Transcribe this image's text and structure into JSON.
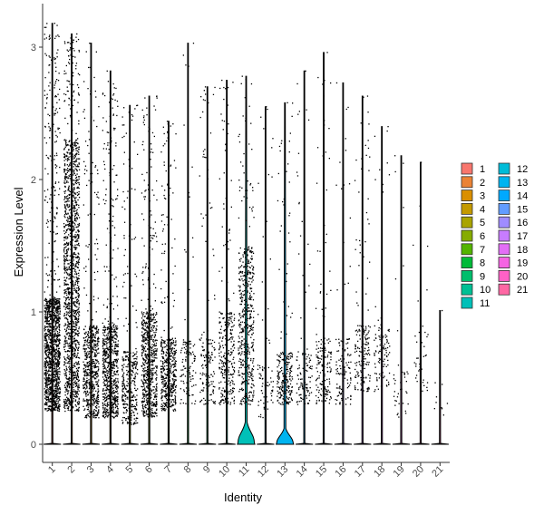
{
  "chart_data": {
    "type": "violin",
    "xlabel": "Identity",
    "ylabel": "Expression Level",
    "ylim": [
      -0.15,
      3.3
    ],
    "y_ticks": [
      0,
      1,
      2,
      3
    ],
    "categories": [
      "1",
      "2",
      "3",
      "4",
      "5",
      "6",
      "7",
      "8",
      "9",
      "10",
      "11",
      "12",
      "13",
      "14",
      "15",
      "16",
      "17",
      "18",
      "19",
      "20",
      "21"
    ],
    "max_values": [
      3.18,
      3.1,
      3.03,
      2.82,
      2.56,
      2.63,
      2.44,
      3.03,
      2.7,
      2.75,
      2.78,
      2.55,
      2.58,
      2.82,
      2.96,
      2.73,
      2.63,
      2.4,
      2.18,
      2.13,
      1.01
    ],
    "point_counts": [
      1400,
      1500,
      600,
      800,
      350,
      700,
      500,
      120,
      160,
      300,
      500,
      80,
      250,
      110,
      180,
      120,
      180,
      110,
      40,
      40,
      10
    ],
    "dense_band": [
      [
        0.25,
        1.1
      ],
      [
        0.25,
        2.3
      ],
      [
        0.2,
        0.9
      ],
      [
        0.2,
        0.9
      ],
      [
        0.15,
        0.7
      ],
      [
        0.2,
        1.0
      ],
      [
        0.25,
        0.8
      ],
      [
        0.3,
        0.8
      ],
      [
        0.3,
        0.8
      ],
      [
        0.3,
        1.0
      ],
      [
        0.3,
        1.5
      ],
      [
        0.2,
        0.6
      ],
      [
        0.3,
        0.7
      ],
      [
        0.3,
        0.7
      ],
      [
        0.3,
        0.8
      ],
      [
        0.3,
        0.8
      ],
      [
        0.4,
        0.9
      ],
      [
        0.4,
        0.9
      ],
      [
        0.2,
        0.6
      ],
      [
        0.4,
        0.9
      ],
      [
        0.2,
        0.5
      ]
    ],
    "violin_zero_bulge": [
      0,
      0,
      0,
      0,
      0,
      0,
      0,
      0,
      0,
      0,
      0.14,
      0,
      0.1,
      0,
      0,
      0,
      0,
      0,
      0,
      0,
      0
    ],
    "legend": {
      "placement": "right",
      "columns": 2,
      "entries": [
        "1",
        "2",
        "3",
        "4",
        "5",
        "6",
        "7",
        "8",
        "9",
        "10",
        "11",
        "12",
        "13",
        "14",
        "15",
        "16",
        "17",
        "18",
        "19",
        "20",
        "21"
      ],
      "colors": [
        "#F8766D",
        "#EB8335",
        "#DA8F00",
        "#C49A00",
        "#A9A400",
        "#86AC00",
        "#53B400",
        "#00BA38",
        "#00BE6C",
        "#00C094",
        "#00C0B8",
        "#00BCD8",
        "#00B4F0",
        "#00A9FF",
        "#619CFF",
        "#9F8CFF",
        "#C77CFF",
        "#E36EF6",
        "#F564E3",
        "#FF61C6",
        "#FF67A4"
      ]
    },
    "grid": false
  }
}
